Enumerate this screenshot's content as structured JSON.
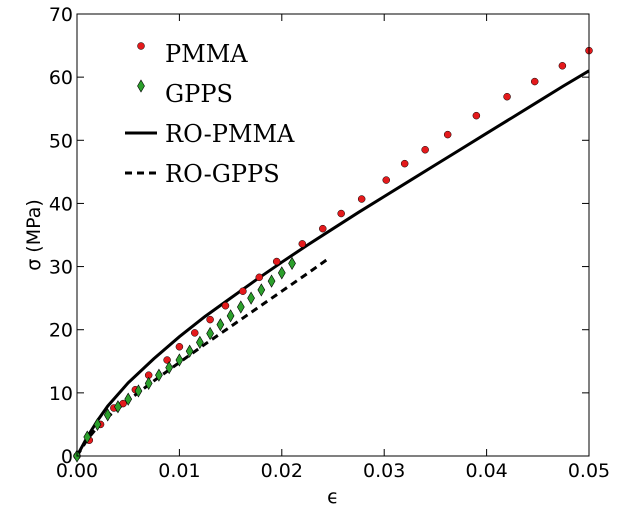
{
  "chart_data": {
    "type": "scatter",
    "title": "",
    "xlabel": "ϵ",
    "ylabel": "σ (MPa)",
    "xlim": [
      0.0,
      0.05
    ],
    "ylim": [
      0,
      70
    ],
    "xticks": [
      0.0,
      0.01,
      0.02,
      0.03,
      0.04,
      0.05
    ],
    "xtick_labels": [
      "0.00",
      "0.01",
      "0.02",
      "0.03",
      "0.04",
      "0.05"
    ],
    "yticks": [
      0,
      10,
      20,
      30,
      40,
      50,
      60,
      70
    ],
    "ytick_labels": [
      "0",
      "10",
      "20",
      "30",
      "40",
      "50",
      "60",
      "70"
    ],
    "grid": false,
    "legend_position": "top-left",
    "series": [
      {
        "name": "PMMA",
        "kind": "marker",
        "marker": "circle",
        "color": "#e41a1c",
        "x": [
          0.0,
          0.0012,
          0.0023,
          0.0036,
          0.0045,
          0.0057,
          0.007,
          0.0088,
          0.01,
          0.0115,
          0.013,
          0.0145,
          0.0162,
          0.0178,
          0.0195,
          0.022,
          0.024,
          0.0258,
          0.0278,
          0.0302,
          0.032,
          0.034,
          0.0362,
          0.039,
          0.042,
          0.0447,
          0.0474,
          0.05
        ],
        "y": [
          0.0,
          2.5,
          5.0,
          7.6,
          8.3,
          10.5,
          12.8,
          15.2,
          17.3,
          19.5,
          21.6,
          23.8,
          26.1,
          28.3,
          30.8,
          33.6,
          36.0,
          38.4,
          40.7,
          43.7,
          46.3,
          48.5,
          50.9,
          53.9,
          56.9,
          59.3,
          61.8,
          64.2
        ]
      },
      {
        "name": "GPPS",
        "kind": "marker",
        "marker": "thin_diamond",
        "color": "#2ca02c",
        "x": [
          0.0,
          0.001,
          0.002,
          0.003,
          0.004,
          0.005,
          0.006,
          0.007,
          0.008,
          0.009,
          0.01,
          0.011,
          0.012,
          0.013,
          0.014,
          0.015,
          0.016,
          0.017,
          0.018,
          0.019,
          0.02,
          0.021
        ],
        "y": [
          0.0,
          3.0,
          5.0,
          6.5,
          7.8,
          9.0,
          10.3,
          11.5,
          12.8,
          14.0,
          15.2,
          16.6,
          18.0,
          19.4,
          20.8,
          22.2,
          23.6,
          25.0,
          26.3,
          27.7,
          29.0,
          30.5
        ]
      },
      {
        "name": "RO-PMMA",
        "kind": "line",
        "style": "solid",
        "color": "#000000",
        "x": [
          0.0,
          0.001,
          0.002,
          0.003,
          0.005,
          0.0075,
          0.01,
          0.0125,
          0.015,
          0.0175,
          0.02,
          0.0225,
          0.025,
          0.0275,
          0.03,
          0.0325,
          0.035,
          0.0375,
          0.04,
          0.0425,
          0.045,
          0.0475,
          0.05
        ],
        "y": [
          0.0,
          3.0,
          5.6,
          7.9,
          11.6,
          15.4,
          18.9,
          22.1,
          25.0,
          27.9,
          30.7,
          33.4,
          36.0,
          38.6,
          41.1,
          43.6,
          46.1,
          48.6,
          51.1,
          53.6,
          56.1,
          58.6,
          61.0
        ]
      },
      {
        "name": "RO-GPPS",
        "kind": "line",
        "style": "dashed",
        "color": "#000000",
        "x": [
          0.0,
          0.001,
          0.002,
          0.003,
          0.005,
          0.0075,
          0.01,
          0.0125,
          0.015,
          0.0175,
          0.02,
          0.0225,
          0.0245
        ],
        "y": [
          0.0,
          2.6,
          4.6,
          6.2,
          8.8,
          11.9,
          14.8,
          17.7,
          20.5,
          23.3,
          26.1,
          28.9,
          31.2
        ]
      }
    ]
  }
}
